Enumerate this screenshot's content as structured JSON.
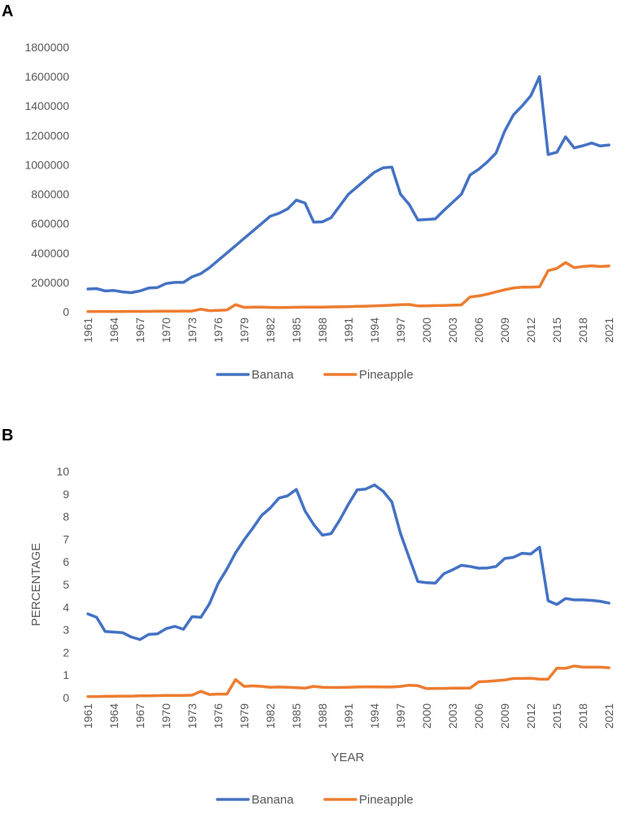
{
  "chart_data": [
    {
      "type": "line",
      "panel_label": "A",
      "title": "",
      "xlabel": "",
      "ylabel": "",
      "ylim": [
        0,
        1800000
      ],
      "y_ticks": [
        "0",
        "200000",
        "400000",
        "600000",
        "800000",
        "1000000",
        "1200000",
        "1400000",
        "1600000",
        "1800000"
      ],
      "x_tick_labels": [
        "1961",
        "1964",
        "1967",
        "1970",
        "1973",
        "1976",
        "1979",
        "1982",
        "1985",
        "1988",
        "1991",
        "1994",
        "1997",
        "2000",
        "2003",
        "2006",
        "2009",
        "2012",
        "2015",
        "2018",
        "2021"
      ],
      "x": [
        1961,
        1962,
        1963,
        1964,
        1965,
        1966,
        1967,
        1968,
        1969,
        1970,
        1971,
        1972,
        1973,
        1974,
        1975,
        1976,
        1977,
        1978,
        1979,
        1980,
        1981,
        1982,
        1983,
        1984,
        1985,
        1986,
        1987,
        1988,
        1989,
        1990,
        1991,
        1992,
        1993,
        1994,
        1995,
        1996,
        1997,
        1998,
        1999,
        2000,
        2001,
        2002,
        2003,
        2004,
        2005,
        2006,
        2007,
        2008,
        2009,
        2010,
        2011,
        2012,
        2013,
        2014,
        2015,
        2016,
        2017,
        2018,
        2019,
        2020,
        2021
      ],
      "series": [
        {
          "name": "Banana",
          "color": "#4472c4",
          "values": [
            155000,
            158000,
            142000,
            145000,
            135000,
            130000,
            142000,
            162000,
            165000,
            192000,
            200000,
            200000,
            238000,
            260000,
            300000,
            350000,
            400000,
            450000,
            500000,
            550000,
            600000,
            650000,
            670000,
            700000,
            760000,
            740000,
            610000,
            612000,
            640000,
            720000,
            800000,
            850000,
            900000,
            950000,
            980000,
            985000,
            800000,
            730000,
            625000,
            628000,
            632000,
            690000,
            745000,
            800000,
            930000,
            970000,
            1020000,
            1080000,
            1230000,
            1340000,
            1400000,
            1470000,
            1600000,
            1070000,
            1085000,
            1190000,
            1115000,
            1130000,
            1148000,
            1128000,
            1135000
          ]
        },
        {
          "name": "Pineapple",
          "color": "#ed7d31",
          "values": [
            2000,
            2000,
            2000,
            2000,
            2000,
            3000,
            3000,
            3000,
            4000,
            4000,
            4000,
            5000,
            5000,
            18000,
            8000,
            10000,
            12000,
            48000,
            30000,
            32000,
            32000,
            30000,
            29000,
            30000,
            31000,
            32000,
            32000,
            32000,
            33000,
            34000,
            35000,
            37000,
            38000,
            40000,
            42000,
            45000,
            48000,
            50000,
            40000,
            40000,
            42000,
            43000,
            45000,
            47000,
            100000,
            108000,
            120000,
            135000,
            150000,
            162000,
            167000,
            168000,
            170000,
            280000,
            295000,
            335000,
            300000,
            308000,
            313000,
            308000,
            312000
          ]
        }
      ],
      "legend": [
        "Banana",
        "Pineapple"
      ],
      "legend_position": "bottom-center"
    },
    {
      "type": "line",
      "panel_label": "B",
      "title": "",
      "xlabel": "YEAR",
      "ylabel": "PERCENTAGE",
      "ylim": [
        0,
        10
      ],
      "y_ticks": [
        "0",
        "1",
        "2",
        "3",
        "4",
        "5",
        "6",
        "7",
        "8",
        "9",
        "10"
      ],
      "x_tick_labels": [
        "1961",
        "1964",
        "1967",
        "1970",
        "1973",
        "1976",
        "1979",
        "1982",
        "1985",
        "1988",
        "1991",
        "1994",
        "1997",
        "2000",
        "2003",
        "2006",
        "2009",
        "2012",
        "2015",
        "2018",
        "2021"
      ],
      "x": [
        1961,
        1962,
        1963,
        1964,
        1965,
        1966,
        1967,
        1968,
        1969,
        1970,
        1971,
        1972,
        1973,
        1974,
        1975,
        1976,
        1977,
        1978,
        1979,
        1980,
        1981,
        1982,
        1983,
        1984,
        1985,
        1986,
        1987,
        1988,
        1989,
        1990,
        1991,
        1992,
        1993,
        1994,
        1995,
        1996,
        1997,
        1998,
        1999,
        2000,
        2001,
        2002,
        2003,
        2004,
        2005,
        2006,
        2007,
        2008,
        2009,
        2010,
        2011,
        2012,
        2013,
        2014,
        2015,
        2016,
        2017,
        2018,
        2019,
        2020,
        2021
      ],
      "series": [
        {
          "name": "Banana",
          "color": "#4472c4",
          "values": [
            3.7,
            3.55,
            2.92,
            2.9,
            2.87,
            2.68,
            2.57,
            2.8,
            2.82,
            3.05,
            3.15,
            3.02,
            3.58,
            3.55,
            4.15,
            5.05,
            5.68,
            6.4,
            6.98,
            7.5,
            8.05,
            8.38,
            8.82,
            8.92,
            9.2,
            8.25,
            7.65,
            7.18,
            7.25,
            7.85,
            8.55,
            9.18,
            9.22,
            9.4,
            9.12,
            8.65,
            7.25,
            6.18,
            5.13,
            5.08,
            5.06,
            5.48,
            5.65,
            5.85,
            5.8,
            5.72,
            5.73,
            5.8,
            6.15,
            6.2,
            6.38,
            6.35,
            6.65,
            4.28,
            4.12,
            4.38,
            4.32,
            4.32,
            4.3,
            4.26,
            4.18
          ]
        },
        {
          "name": "Pineapple",
          "color": "#ed7d31",
          "values": [
            0.05,
            0.05,
            0.06,
            0.06,
            0.07,
            0.07,
            0.08,
            0.08,
            0.09,
            0.1,
            0.1,
            0.1,
            0.11,
            0.28,
            0.14,
            0.16,
            0.16,
            0.8,
            0.5,
            0.52,
            0.5,
            0.46,
            0.47,
            0.46,
            0.44,
            0.42,
            0.5,
            0.46,
            0.45,
            0.45,
            0.46,
            0.47,
            0.48,
            0.48,
            0.47,
            0.47,
            0.5,
            0.55,
            0.53,
            0.4,
            0.41,
            0.41,
            0.42,
            0.42,
            0.42,
            0.7,
            0.72,
            0.75,
            0.78,
            0.85,
            0.85,
            0.86,
            0.82,
            0.82,
            1.3,
            1.3,
            1.4,
            1.35,
            1.35,
            1.35,
            1.32
          ]
        }
      ],
      "legend": [
        "Banana",
        "Pineapple"
      ],
      "legend_position": "bottom-center"
    }
  ]
}
